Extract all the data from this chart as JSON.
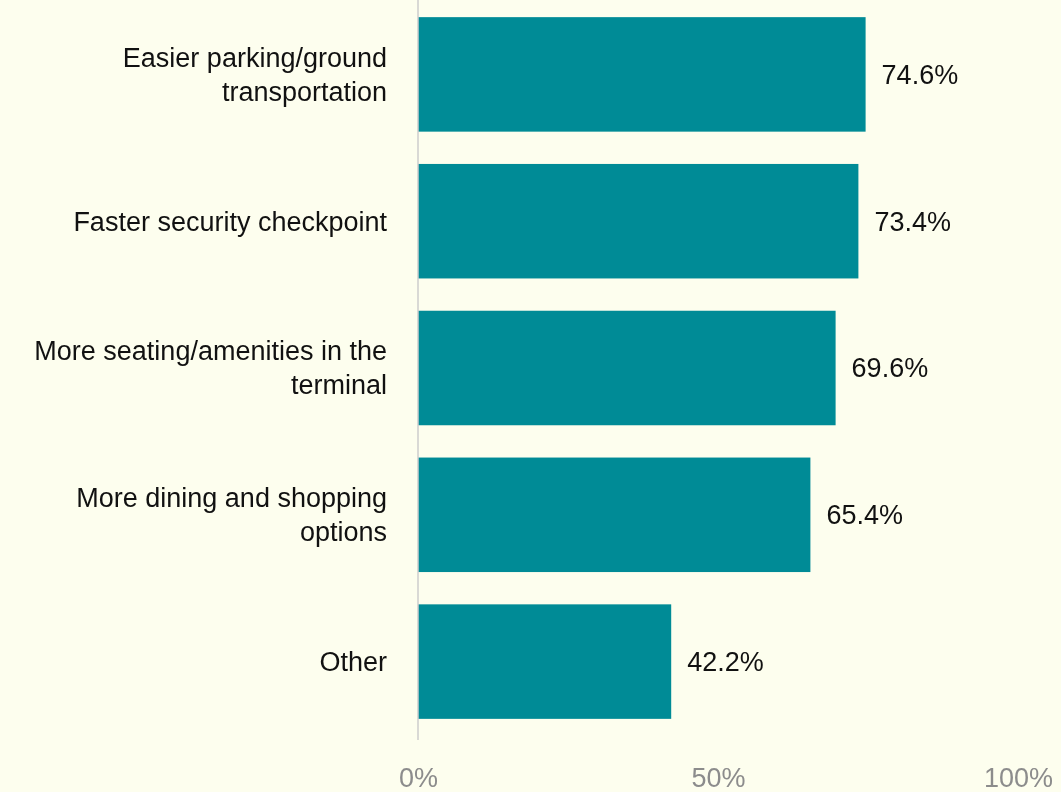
{
  "chart_data": {
    "type": "bar",
    "orientation": "horizontal",
    "categories": [
      "Easier parking/ground transportation",
      "Faster security checkpoint",
      "More seating/amenities in the terminal",
      "More dining and shopping options",
      "Other"
    ],
    "values": [
      74.6,
      73.4,
      69.6,
      65.4,
      42.2
    ],
    "value_labels": [
      "74.6%",
      "73.4%",
      "69.6%",
      "65.4%",
      "42.2%"
    ],
    "color": "#008b96",
    "xlim": [
      0,
      100
    ],
    "xticks": [
      {
        "value": 0,
        "label": "0%"
      },
      {
        "value": 50,
        "label": "50%"
      },
      {
        "value": 100,
        "label": "100%"
      }
    ],
    "grid": false
  }
}
